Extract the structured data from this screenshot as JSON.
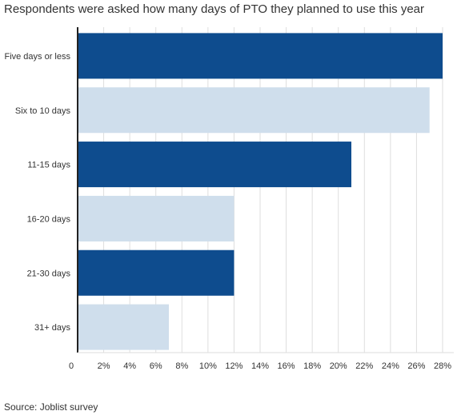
{
  "header": {
    "title": "Respondents were asked how many days of PTO they planned to use this year"
  },
  "footer": {
    "source": "Source: Joblist survey"
  },
  "chart_data": {
    "type": "bar",
    "orientation": "horizontal",
    "title": "Respondents were asked how many days of PTO they planned to use this year",
    "categories": [
      "Five days or less",
      "Six to 10 days",
      "11-15 days",
      "16-20 days",
      "21-30 days",
      "31+ days"
    ],
    "values": [
      28,
      27,
      21,
      12,
      12,
      7
    ],
    "xlim": [
      0,
      28
    ],
    "x_ticks": [
      "0",
      "2%",
      "4%",
      "6%",
      "8%",
      "10%",
      "12%",
      "14%",
      "16%",
      "18%",
      "20%",
      "22%",
      "24%",
      "26%",
      "28%"
    ],
    "grid": true,
    "colors": {
      "dark": "#0e4c8e",
      "light": "#cfdeec",
      "grid": "#dedede",
      "axis": "#222222"
    }
  }
}
